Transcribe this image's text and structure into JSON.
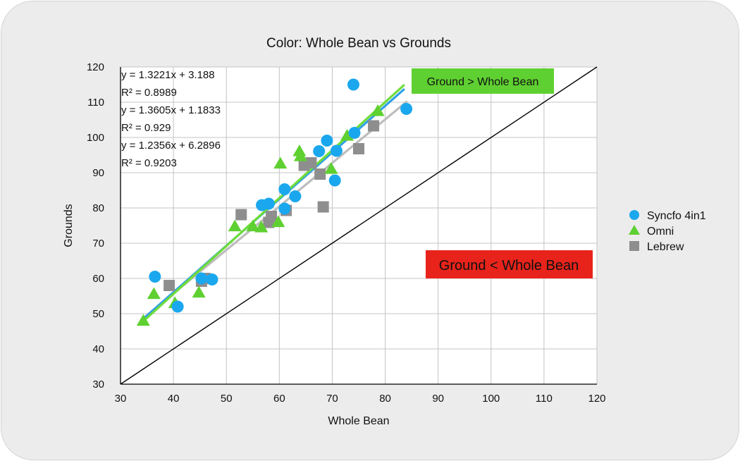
{
  "chart_data": {
    "type": "scatter",
    "title": "Color: Whole Bean vs Grounds",
    "xlabel": "Whole Bean",
    "ylabel": "Grounds",
    "xlim": [
      30,
      120
    ],
    "ylim": [
      30,
      120
    ],
    "xticks": [
      "30",
      "40",
      "50",
      "60",
      "70",
      "80",
      "90",
      "100",
      "110",
      "120"
    ],
    "yticks": [
      "30",
      "40",
      "50",
      "60",
      "70",
      "80",
      "90",
      "100",
      "110",
      "120"
    ],
    "grid": true,
    "legend_position": "right",
    "series": [
      {
        "name": "Syncfo 4in1",
        "marker": "circle",
        "color": "#1aa7ee",
        "trend_color": "#2fa0e6",
        "points": [
          [
            36.5,
            60.5
          ],
          [
            40.8,
            52
          ],
          [
            45.3,
            60
          ],
          [
            47.3,
            59.7
          ],
          [
            56.7,
            80.8
          ],
          [
            58,
            81.2
          ],
          [
            61,
            85.3
          ],
          [
            61,
            79.8
          ],
          [
            63,
            83.3
          ],
          [
            67.5,
            96.1
          ],
          [
            69,
            99.1
          ],
          [
            70.8,
            96.2
          ],
          [
            70.5,
            87.8
          ],
          [
            74,
            115
          ],
          [
            74.2,
            101.3
          ],
          [
            84,
            108.1
          ]
        ],
        "trend": {
          "slope": 1.3221,
          "intercept": 3.188,
          "x_range": [
            34.5,
            83.5
          ]
        },
        "equation": "y = 1.3221x + 3.188",
        "r2": "R² = 0.8989"
      },
      {
        "name": "Omni",
        "marker": "triangle",
        "color": "#5fd031",
        "trend_color": "#6fdc3a",
        "points": [
          [
            34.3,
            48
          ],
          [
            36.3,
            55.6
          ],
          [
            40.3,
            53
          ],
          [
            44.8,
            56
          ],
          [
            51.6,
            74.8
          ],
          [
            55,
            74.8
          ],
          [
            56.6,
            74.5
          ],
          [
            59.8,
            76
          ],
          [
            60.2,
            92.6
          ],
          [
            63.8,
            96.1
          ],
          [
            64,
            94.7
          ],
          [
            69.8,
            91.1
          ],
          [
            72.8,
            100.5
          ],
          [
            78.6,
            107.5
          ]
        ],
        "trend": {
          "slope": 1.3605,
          "intercept": 1.1833,
          "x_range": [
            34,
            83.5
          ]
        },
        "equation": "y = 1.3605x + 1.1833",
        "r2": "R² = 0.929"
      },
      {
        "name": "Lebrew",
        "marker": "square",
        "color": "#8e8e8e",
        "trend_color": "#bdbdbd",
        "points": [
          [
            39.2,
            58
          ],
          [
            45.3,
            59.2
          ],
          [
            46,
            60
          ],
          [
            52.8,
            78.1
          ],
          [
            58,
            75.9
          ],
          [
            58.5,
            77.6
          ],
          [
            61.3,
            79.3
          ],
          [
            64.7,
            92.1
          ],
          [
            66,
            92.8
          ],
          [
            67.7,
            89.6
          ],
          [
            68.3,
            80.3
          ],
          [
            75,
            96.8
          ],
          [
            77.8,
            103.3
          ]
        ],
        "trend": {
          "slope": 1.2356,
          "intercept": 6.2896,
          "x_range": [
            34.5,
            84
          ]
        },
        "equation": "y = 1.2356x + 6.2896",
        "r2": "R² = 0.9203"
      }
    ],
    "reference_line": {
      "x": [
        30,
        120
      ],
      "y": [
        30,
        120
      ],
      "color": "#000000"
    },
    "annotations": [
      {
        "text": "Ground > Whole Bean",
        "fill": "#5fd031",
        "text_color": "#111111"
      },
      {
        "text": "Ground < Whole Bean",
        "fill": "#e8231b",
        "text_color": "#111111"
      }
    ]
  }
}
